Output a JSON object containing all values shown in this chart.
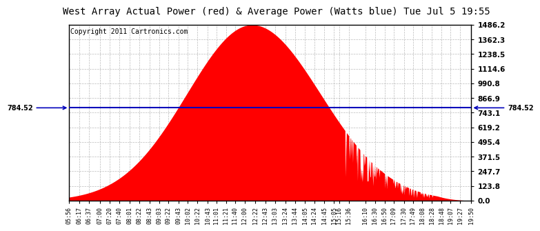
{
  "title": "West Array Actual Power (red) & Average Power (Watts blue) Tue Jul 5 19:55",
  "copyright": "Copyright 2011 Cartronics.com",
  "avg_power": 784.52,
  "y_max": 1486.2,
  "y_ticks": [
    0.0,
    123.8,
    247.7,
    371.5,
    495.4,
    619.2,
    743.1,
    866.9,
    990.8,
    1114.6,
    1238.5,
    1362.3,
    1486.2
  ],
  "x_labels": [
    "05:56",
    "06:17",
    "06:37",
    "07:00",
    "07:20",
    "07:40",
    "08:01",
    "08:22",
    "08:43",
    "09:03",
    "09:22",
    "09:43",
    "10:02",
    "10:22",
    "10:43",
    "11:01",
    "11:21",
    "11:40",
    "12:00",
    "12:22",
    "12:43",
    "13:03",
    "13:24",
    "13:44",
    "14:05",
    "14:24",
    "14:45",
    "15:05",
    "15:16",
    "15:36",
    "16:10",
    "16:30",
    "16:50",
    "17:09",
    "17:30",
    "17:49",
    "18:08",
    "18:28",
    "18:48",
    "19:07",
    "19:27",
    "19:50"
  ],
  "bar_color": "#FF0000",
  "line_color": "#0000BB",
  "bg_color": "#FFFFFF",
  "grid_color": "#AAAAAA",
  "title_fontsize": 10,
  "copyright_fontsize": 7,
  "avg_label_fontsize": 7
}
